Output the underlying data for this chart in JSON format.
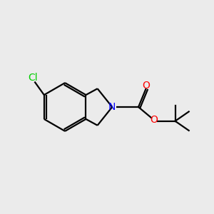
{
  "background_color": "#ebebeb",
  "bond_color": "#000000",
  "atom_colors": {
    "N": "#0000ff",
    "O": "#ff0000",
    "Cl": "#00cc00",
    "C": "#000000"
  },
  "figsize": [
    3.0,
    3.0
  ],
  "dpi": 100,
  "lw": 1.6
}
